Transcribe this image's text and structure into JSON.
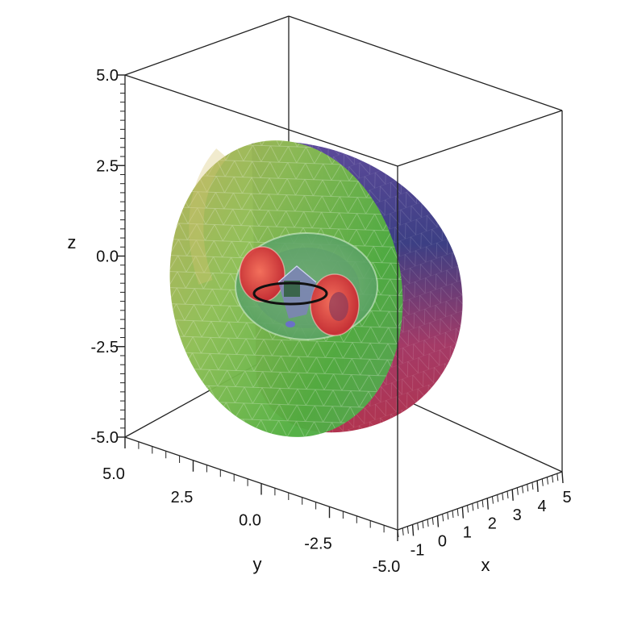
{
  "chart_data": {
    "type": "3d-surface",
    "axes": {
      "x": {
        "label": "x",
        "range": [
          -1,
          5
        ],
        "ticks": [
          -1,
          0,
          1,
          2,
          3,
          4,
          5
        ],
        "tick_labels": [
          "-1",
          "0",
          "1",
          "2",
          "3",
          "4",
          "5"
        ]
      },
      "y": {
        "label": "y",
        "range": [
          -5.0,
          5.0
        ],
        "ticks": [
          5.0,
          2.5,
          0.0,
          -2.5,
          -5.0
        ],
        "tick_labels": [
          "5.0",
          "2.5",
          "0.0",
          "-2.5",
          "-5.0"
        ]
      },
      "z": {
        "label": "z",
        "range": [
          -5.0,
          5.0
        ],
        "ticks": [
          5.0,
          2.5,
          0.0,
          -2.5,
          -5.0
        ],
        "tick_labels": [
          "5.0",
          "2.5",
          "0.0",
          "-2.5",
          "-5.0"
        ]
      }
    },
    "box": true,
    "surfaces": [
      {
        "shape": "half-ellipsoid (cut at x = 0)",
        "style": "translucent mesh",
        "colors": [
          "#5fae45",
          "#b0aa58",
          "#6a5aa0",
          "#b2355a"
        ]
      },
      {
        "shape": "inner shell (cut)",
        "style": "translucent",
        "colors": [
          "#6fb06a",
          "#e23b3b"
        ]
      },
      {
        "shape": "central core",
        "style": "translucent",
        "colors": [
          "#7f7fb8",
          "#6a9a6a"
        ]
      },
      {
        "shape": "ring",
        "style": "curve",
        "colors": [
          "#111111"
        ]
      }
    ]
  }
}
